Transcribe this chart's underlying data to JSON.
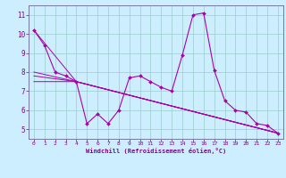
{
  "xlabel": "Windchill (Refroidissement éolien,°C)",
  "ylabel": "",
  "bg_color": "#cceeff",
  "line_color": "#aa00aa",
  "grid_color": "#99cccc",
  "spine_color": "#7777aa",
  "label_color": "#880088",
  "xlim": [
    -0.5,
    23.5
  ],
  "ylim": [
    4.5,
    11.5
  ],
  "yticks": [
    5,
    6,
    7,
    8,
    9,
    10,
    11
  ],
  "xticks": [
    0,
    1,
    2,
    3,
    4,
    5,
    6,
    7,
    8,
    9,
    10,
    11,
    12,
    13,
    14,
    15,
    16,
    17,
    18,
    19,
    20,
    21,
    22,
    23
  ],
  "line1_x": [
    0,
    1,
    2,
    3,
    4,
    5,
    6,
    7,
    8,
    9,
    10,
    11,
    12,
    13,
    14,
    15,
    16,
    17,
    18,
    19,
    20,
    21,
    22,
    23
  ],
  "line1_y": [
    10.2,
    9.4,
    8.0,
    7.8,
    7.5,
    5.3,
    5.8,
    5.3,
    6.0,
    7.7,
    7.8,
    7.5,
    7.2,
    7.0,
    8.9,
    11.0,
    11.1,
    8.1,
    6.5,
    6.0,
    5.9,
    5.3,
    5.2,
    4.8
  ],
  "line2_x": [
    0,
    4,
    23
  ],
  "line2_y": [
    10.2,
    7.5,
    4.8
  ],
  "line3_x": [
    0,
    4,
    23
  ],
  "line3_y": [
    8.0,
    7.5,
    4.8
  ],
  "line4_x": [
    0,
    4,
    23
  ],
  "line4_y": [
    7.8,
    7.5,
    4.8
  ],
  "line5_x": [
    0,
    4,
    23
  ],
  "line5_y": [
    7.5,
    7.5,
    4.8
  ]
}
